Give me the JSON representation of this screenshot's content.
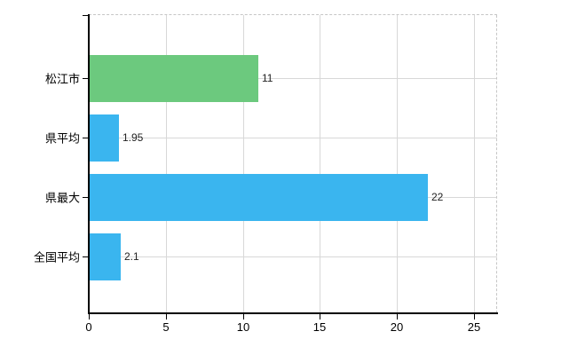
{
  "chart_data": {
    "type": "bar",
    "orientation": "horizontal",
    "title": "",
    "xlabel": "",
    "ylabel": "",
    "categories": [
      "松江市",
      "県平均",
      "県最大",
      "全国平均"
    ],
    "values": [
      11,
      1.95,
      22,
      2.1
    ],
    "value_labels": [
      "11",
      "1.95",
      "22",
      "2.1"
    ],
    "bar_colors": [
      "#6cc97e",
      "#3ab5ef",
      "#3ab5ef",
      "#3ab5ef"
    ],
    "x_ticks": [
      0,
      5,
      10,
      15,
      20,
      25
    ],
    "xlim": [
      0,
      26.5
    ],
    "grid": true,
    "legend": false,
    "colors": {
      "green_bar": "#6cc97e",
      "blue_bar": "#3ab5ef",
      "gridline": "#d8d8d8",
      "axis": "#000000",
      "dashed_border": "#c6c6c6",
      "background": "#ffffff",
      "text": "#000000"
    }
  }
}
